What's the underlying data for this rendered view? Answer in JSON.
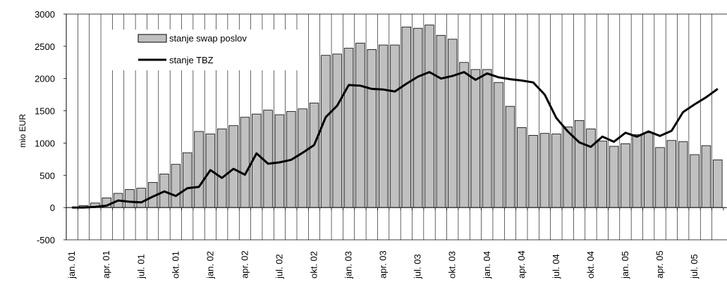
{
  "chart_data": {
    "type": "bar",
    "title": "",
    "xlabel": "",
    "ylabel": "mio EUR",
    "ylim": [
      -500,
      3000
    ],
    "yticks": [
      "3000",
      "2500",
      "2000",
      "1500",
      "1000",
      "500",
      "0",
      "-500"
    ],
    "grid": "vertical",
    "legend_position": "top-left",
    "categories": [
      "jan. 01",
      "feb. 01",
      "mar. 01",
      "apr. 01",
      "maj 01",
      "jun. 01",
      "jul. 01",
      "avg. 01",
      "sep. 01",
      "okt. 01",
      "nov. 01",
      "dec. 01",
      "jan. 02",
      "feb. 02",
      "mar. 02",
      "apr. 02",
      "maj 02",
      "jun. 02",
      "jul. 02",
      "avg. 02",
      "sep. 02",
      "okt. 02",
      "nov. 02",
      "dec. 02",
      "jan. 03",
      "feb. 03",
      "mar. 03",
      "apr. 03",
      "maj 03",
      "jun. 03",
      "jul. 03",
      "avg. 03",
      "sep. 03",
      "okt. 03",
      "nov. 03",
      "dec. 03",
      "jan. 04",
      "feb. 04",
      "mar. 04",
      "apr. 04",
      "maj 04",
      "jun. 04",
      "jul. 04",
      "avg. 04",
      "sep. 04",
      "okt. 04",
      "nov. 04",
      "dec. 04",
      "jan. 05",
      "feb. 05",
      "mar. 05",
      "apr. 05",
      "maj 05",
      "jun. 05",
      "jul. 05",
      "avg. 05",
      "sep. 05"
    ],
    "visible_month_labels": [
      "jan. 01",
      "apr. 01",
      "jul. 01",
      "okt. 01",
      "jan. 02",
      "apr. 02",
      "jul. 02",
      "okt. 02",
      "jan. 03",
      "apr. 03",
      "jul. 03",
      "okt. 03",
      "jan. 04",
      "apr. 04",
      "jul. 04",
      "okt. 04",
      "jan. 05",
      "apr. 05",
      "jul. 05"
    ],
    "series": [
      {
        "name": "stanje swap poslov",
        "type": "bar",
        "color": "#c0c0c0",
        "values": [
          0,
          30,
          70,
          150,
          220,
          280,
          300,
          390,
          520,
          670,
          850,
          1180,
          1140,
          1220,
          1270,
          1400,
          1450,
          1510,
          1440,
          1490,
          1530,
          1620,
          2360,
          2380,
          2470,
          2550,
          2450,
          2520,
          2520,
          2800,
          2780,
          2830,
          2670,
          2610,
          2250,
          2140,
          2140,
          1940,
          1570,
          1240,
          1120,
          1150,
          1140,
          1250,
          1350,
          1220,
          1030,
          950,
          990,
          1130,
          1160,
          930,
          1040,
          1020,
          820,
          960,
          740
        ]
      },
      {
        "name": "stanje TBZ",
        "type": "line",
        "color": "#000000",
        "values": [
          0,
          0,
          10,
          30,
          110,
          90,
          80,
          170,
          250,
          180,
          300,
          320,
          580,
          460,
          600,
          510,
          840,
          680,
          700,
          740,
          850,
          970,
          1400,
          1580,
          1900,
          1890,
          1840,
          1830,
          1800,
          1920,
          2030,
          2100,
          2000,
          2040,
          2100,
          1980,
          2080,
          2020,
          1990,
          1970,
          1940,
          1750,
          1390,
          1180,
          1010,
          940,
          1100,
          1020,
          1160,
          1100,
          1180,
          1110,
          1190,
          1480,
          1600,
          1710,
          1840
        ]
      }
    ]
  }
}
